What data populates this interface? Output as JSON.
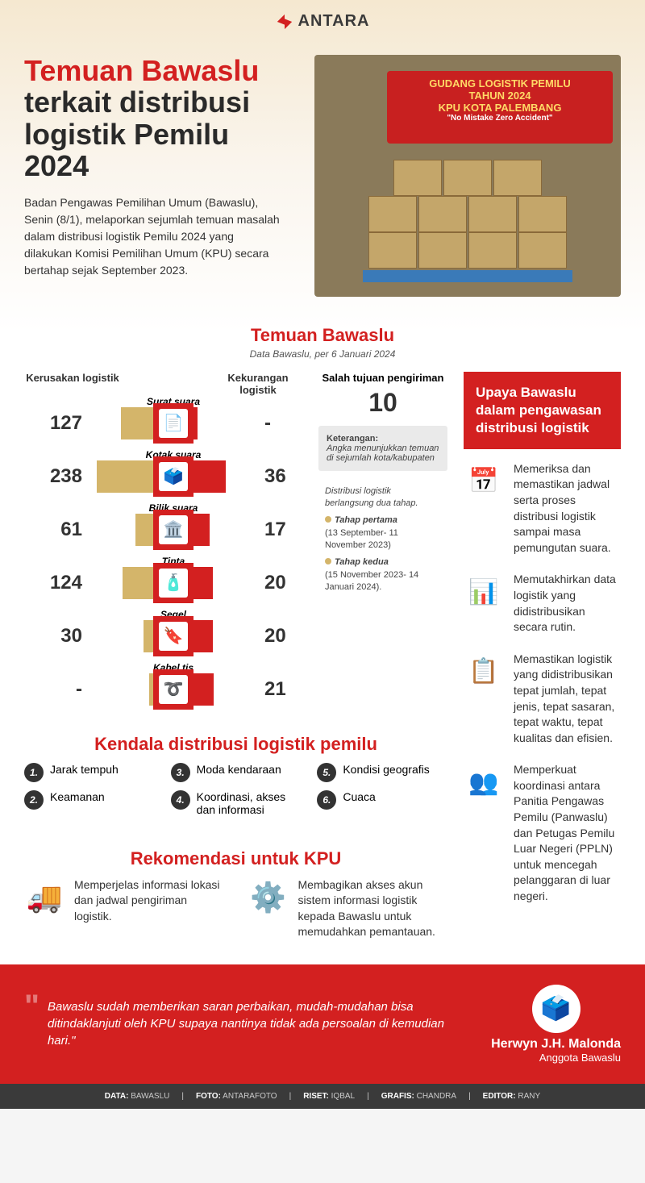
{
  "brand": "ANTARA",
  "title_red": "Temuan Bawaslu",
  "title_black1": "terkait distribusi",
  "title_black2": "logistik Pemilu 2024",
  "intro": "Badan Pengawas Pemilihan Umum (Bawaslu), Senin (8/1), melaporkan sejumlah temuan masalah dalam distribusi logistik Pemilu 2024 yang dilakukan Komisi Pemilihan Umum (KPU) secara bertahap sejak September 2023.",
  "banner_l1": "GUDANG LOGISTIK PEMILU",
  "banner_l2": "TAHUN 2024",
  "banner_l3": "KPU KOTA PALEMBANG",
  "banner_l4": "\"No Mistake Zero Accident\"",
  "temuan_title": "Temuan Bawaslu",
  "temuan_sub": "Data Bawaslu, per 6 Januari 2024",
  "col_kerusakan": "Kerusakan logistik",
  "col_kekurangan": "Kekurangan logistik",
  "col_salah": "Salah tujuan pengiriman",
  "salah_val": "10",
  "rows": [
    {
      "label": "Surat suara",
      "left": "127",
      "right": "-",
      "leftW": 40,
      "rightW": 5,
      "icon": "📄"
    },
    {
      "label": "Kotak suara",
      "left": "238",
      "right": "36",
      "leftW": 70,
      "rightW": 40,
      "icon": "🗳️"
    },
    {
      "label": "Bilik suara",
      "left": "61",
      "right": "17",
      "leftW": 22,
      "rightW": 20,
      "icon": "🏛️"
    },
    {
      "label": "Tinta",
      "left": "124",
      "right": "20",
      "leftW": 38,
      "rightW": 24,
      "icon": "🧴"
    },
    {
      "label": "Segel",
      "left": "30",
      "right": "20",
      "leftW": 12,
      "rightW": 24,
      "icon": "🔖"
    },
    {
      "label": "Kabel tis",
      "left": "-",
      "right": "21",
      "leftW": 5,
      "rightW": 25,
      "icon": "➰"
    }
  ],
  "note_ket_head": "Keterangan:",
  "note_ket": "Angka menunjukkan temuan di sejumlah kota/kabupaten",
  "phase_intro": "Distribusi logistik berlangsung dua tahap.",
  "phase1_label": "Tahap pertama",
  "phase1_date": "(13 September- 11 November 2023)",
  "phase2_label": "Tahap kedua",
  "phase2_date": "(15 November 2023- 14 Januari 2024).",
  "upaya_title": "Upaya Bawaslu dalam pengawasan distribusi logistik",
  "upaya": [
    {
      "icon": "📅",
      "text": "Memeriksa dan memastikan jadwal serta proses distribusi logistik sampai masa pemungutan suara."
    },
    {
      "icon": "📊",
      "text": "Memutakhirkan data logistik yang didistribusikan secara rutin."
    },
    {
      "icon": "📋",
      "text": "Memastikan logistik yang didistribusikan tepat jumlah, tepat jenis, tepat sasaran, tepat waktu, tepat kualitas dan efisien."
    },
    {
      "icon": "👥",
      "text": "Memperkuat koordinasi antara Panitia Pengawas Pemilu (Panwaslu) dan Petugas Pemilu Luar Negeri (PPLN) untuk mencegah pelanggaran di luar negeri."
    }
  ],
  "kendala_title": "Kendala distribusi logistik pemilu",
  "kendala": [
    {
      "n": "1.",
      "text": "Jarak tempuh"
    },
    {
      "n": "3.",
      "text": "Moda kendaraan"
    },
    {
      "n": "5.",
      "text": "Kondisi geografis"
    },
    {
      "n": "2.",
      "text": "Keamanan"
    },
    {
      "n": "4.",
      "text": "Koordinasi, akses dan informasi"
    },
    {
      "n": "6.",
      "text": "Cuaca"
    }
  ],
  "rekom_title": "Rekomendasi untuk KPU",
  "rekom": [
    {
      "icon": "🚚",
      "text": "Memperjelas informasi lokasi dan jadwal pengiriman logistik."
    },
    {
      "icon": "⚙️",
      "text": "Membagikan akses akun sistem informasi logistik kepada Bawaslu untuk memudahkan pemantauan."
    }
  ],
  "quote": "Bawaslu sudah memberikan saran perbaikan, mudah-mudahan bisa ditindaklanjuti oleh KPU supaya nantinya tidak ada persoalan di kemudian hari.\"",
  "quote_name": "Herwyn J.H. Malonda",
  "quote_role": "Anggota Bawaslu",
  "credits": {
    "data": "BAWASLU",
    "foto": "ANTARAFOTO",
    "riset": "IQBAL",
    "grafis": "CHANDRA",
    "editor": "RANY"
  }
}
